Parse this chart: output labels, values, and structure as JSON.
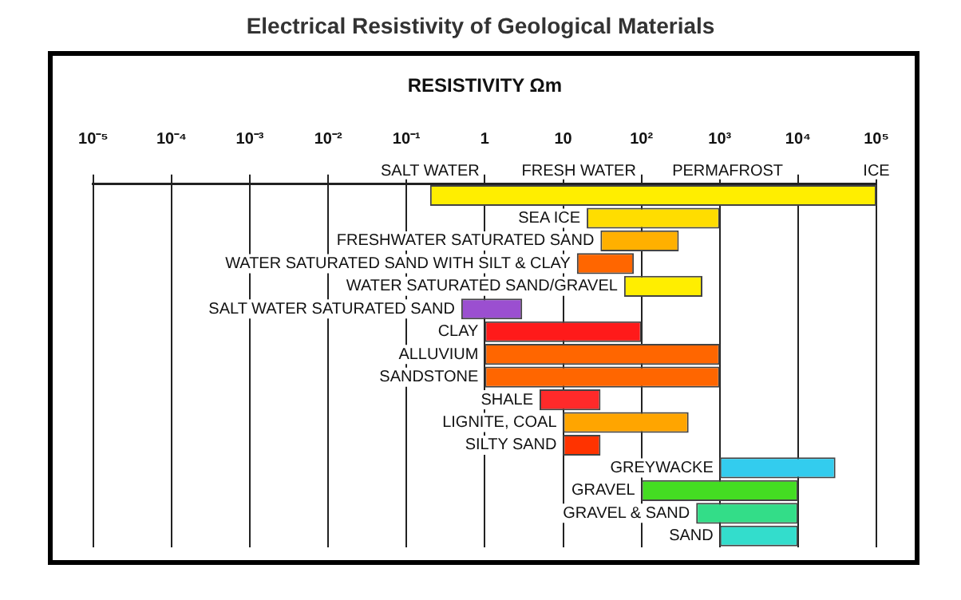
{
  "chart_data": {
    "type": "bar",
    "orientation": "horizontal",
    "title": "Electrical Resistivity of Geological Materials",
    "xlabel": "RESISTIVITY Ωm",
    "log": "x",
    "grid": "x",
    "legend": false,
    "categories": [
      null,
      "SEA ICE",
      "FRESHWATER SATURATED SAND",
      "WATER SATURATED SAND WITH SILT & CLAY",
      "WATER SATURATED SAND/GRAVEL",
      "SALT WATER SATURATED SAND",
      "CLAY",
      "ALLUVIUM",
      "SANDSTONE",
      "SHALE",
      "LIGNITE, COAL",
      "SILTY SAND",
      "GREYWACKE",
      "GRAVEL",
      "GRAVEL & SAND",
      "SAND"
    ],
    "base": [
      0.2,
      20,
      30,
      15,
      60,
      0.5,
      1,
      1,
      1,
      5,
      10,
      10,
      1000,
      100,
      500,
      1000
    ],
    "values": [
      99999.8,
      980,
      270,
      65,
      540,
      2.5,
      99,
      999,
      999,
      25,
      390,
      20,
      29000,
      9900,
      9500,
      9000
    ],
    "colors": [
      "#ffee00",
      "#ffdd00",
      "#ffb000",
      "#ff6600",
      "#ffee00",
      "#9b4fd0",
      "#ff1a1a",
      "#ff6600",
      "#ff6600",
      "#ff2a2a",
      "#ffa500",
      "#ff3300",
      "#33ccee",
      "#44dd22",
      "#33dd88",
      "#33ddcc"
    ],
    "xlim": [
      1e-05,
      100000
    ],
    "xticks": [
      {
        "value": 1e-05,
        "label": "10⁻⁵"
      },
      {
        "value": 0.0001,
        "label": "10⁻⁴"
      },
      {
        "value": 0.001,
        "label": "10⁻³"
      },
      {
        "value": 0.01,
        "label": "10⁻²"
      },
      {
        "value": 0.1,
        "label": "10⁻¹"
      },
      1,
      10,
      {
        "value": 100,
        "label": "10²"
      },
      {
        "value": 1000,
        "label": "10³"
      },
      {
        "value": 10000,
        "label": "10⁴"
      },
      {
        "value": 100000,
        "label": "10⁵"
      }
    ],
    "annotations": [
      "SALT WATER",
      "FRESH WATER",
      "PERMAFROST",
      "ICE"
    ]
  }
}
